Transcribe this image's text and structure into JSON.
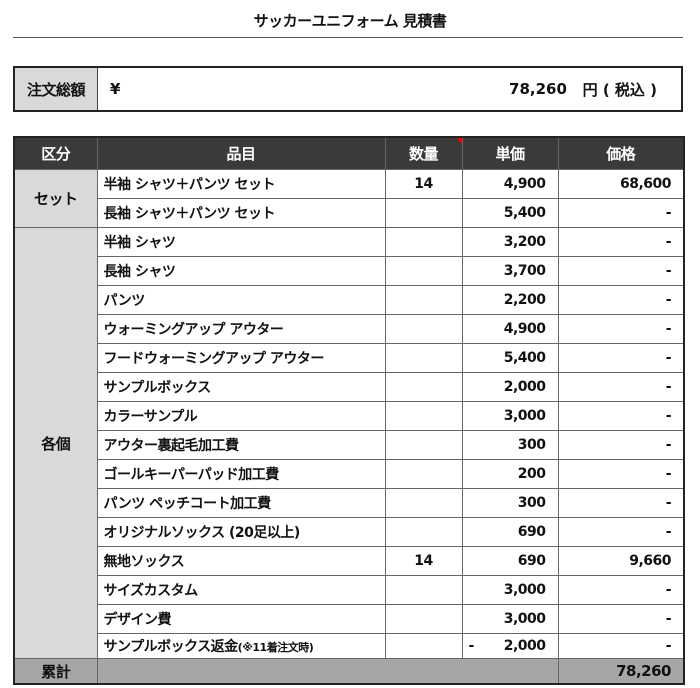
{
  "title": "サッカーユニフォーム 見積書",
  "summary": {
    "label": "注文総額",
    "currency": "¥",
    "amount": "78,260",
    "unit": "円 ( 税込 )"
  },
  "headers": [
    "区分",
    "品目",
    "数量",
    "単価",
    "価格"
  ],
  "categories": {
    "set": "セット",
    "each": "各個"
  },
  "rows": [
    {
      "item": "半袖 シャツ＋パンツ セット",
      "qty": "14",
      "unit": "4,900",
      "price": "68,600"
    },
    {
      "item": "長袖 シャツ＋パンツ セット",
      "qty": "",
      "unit": "5,400",
      "price": "-"
    },
    {
      "item": "半袖 シャツ",
      "qty": "",
      "unit": "3,200",
      "price": "-"
    },
    {
      "item": "長袖 シャツ",
      "qty": "",
      "unit": "3,700",
      "price": "-"
    },
    {
      "item": "パンツ",
      "qty": "",
      "unit": "2,200",
      "price": "-"
    },
    {
      "item": "ウォーミングアップ アウター",
      "qty": "",
      "unit": "4,900",
      "price": "-"
    },
    {
      "item": "フードウォーミングアップ アウター",
      "qty": "",
      "unit": "5,400",
      "price": "-"
    },
    {
      "item": "サンプルボックス",
      "qty": "",
      "unit": "2,000",
      "price": "-"
    },
    {
      "item": "カラーサンプル",
      "qty": "",
      "unit": "3,000",
      "price": "-"
    },
    {
      "item": "アウター裏起毛加工費",
      "qty": "",
      "unit": "300",
      "price": "-"
    },
    {
      "item": "ゴールキーパーパッド加工費",
      "qty": "",
      "unit": "200",
      "price": "-"
    },
    {
      "item": "パンツ ペッチコート加工費",
      "qty": "",
      "unit": "300",
      "price": "-"
    },
    {
      "item": "オリジナルソックス (20足以上)",
      "qty": "",
      "unit": "690",
      "price": "-"
    },
    {
      "item": "無地ソックス",
      "qty": "14",
      "unit": "690",
      "price": "9,660"
    },
    {
      "item": "サイズカスタム",
      "qty": "",
      "unit": "3,000",
      "price": "-"
    },
    {
      "item": "デザイン費",
      "qty": "",
      "unit": "3,000",
      "price": "-"
    },
    {
      "item": "サンプルボックス返金",
      "note": "(※11着注文時)",
      "qty": "",
      "unit_sign": "-",
      "unit": "2,000",
      "price": "-"
    }
  ],
  "total": {
    "label": "累計",
    "price": "78,260"
  },
  "colors": {
    "header_bg": "#3a3a3a",
    "category_bg": "#d9d9d9",
    "total_bg": "#a6a6a6",
    "comment_flag": "#e00000"
  }
}
